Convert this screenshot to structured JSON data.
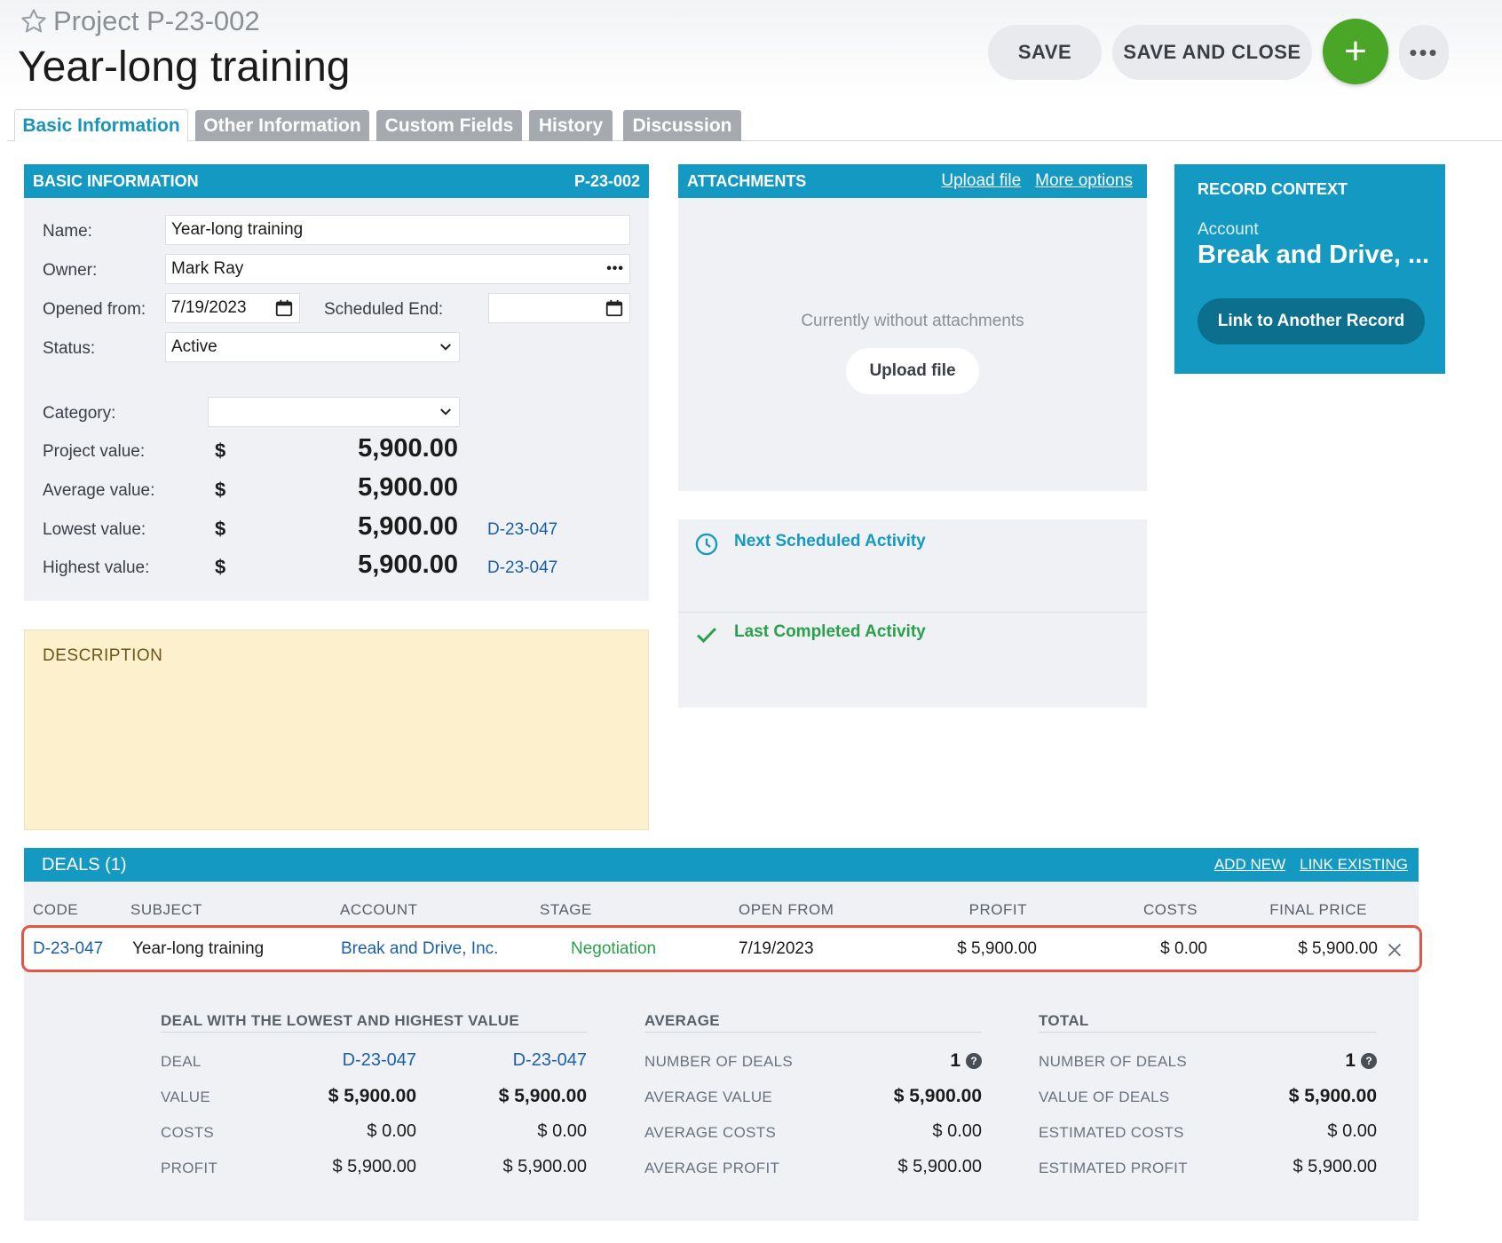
{
  "header": {
    "kicker": "Project P-23-002",
    "title": "Year-long training",
    "save_label": "SAVE",
    "save_close_label": "SAVE AND CLOSE",
    "plus_label": "+",
    "more_label": "•••"
  },
  "tabs": [
    {
      "label": "Basic Information",
      "active": true
    },
    {
      "label": "Other Information"
    },
    {
      "label": "Custom Fields"
    },
    {
      "label": "History"
    },
    {
      "label": "Discussion"
    }
  ],
  "basic": {
    "heading": "BASIC INFORMATION",
    "code": "P-23-002",
    "name_label": "Name:",
    "name_value": "Year-long training",
    "owner_label": "Owner:",
    "owner_value": "Mark Ray",
    "owner_more": "•••",
    "opened_label": "Opened from:",
    "opened_value": "7/19/2023",
    "sched_end_label": "Scheduled End:",
    "sched_end_value": "",
    "status_label": "Status:",
    "status_value": "Active",
    "category_label": "Category:",
    "category_value": "",
    "currency": "$",
    "project_value_label": "Project value:",
    "project_value": "5,900.00",
    "average_value_label": "Average value:",
    "average_value": "5,900.00",
    "lowest_value_label": "Lowest value:",
    "lowest_value": "5,900.00",
    "lowest_link": "D-23-047",
    "highest_value_label": "Highest value:",
    "highest_value": "5,900.00",
    "highest_link": "D-23-047"
  },
  "description": {
    "heading": "DESCRIPTION"
  },
  "attachments": {
    "heading": "ATTACHMENTS",
    "upload_link": "Upload file",
    "more_link": "More options",
    "empty_text": "Currently without attachments",
    "upload_button": "Upload file"
  },
  "activities": {
    "next_label": "Next Scheduled Activity",
    "last_label": "Last Completed Activity"
  },
  "context": {
    "heading": "RECORD CONTEXT",
    "account_label": "Account",
    "account_value": "Break and Drive, ...",
    "link_button": "Link to Another Record"
  },
  "deals": {
    "heading": "DEALS (1)",
    "add_new": "ADD NEW",
    "link_existing": "LINK EXISTING",
    "columns": [
      "CODE",
      "SUBJECT",
      "ACCOUNT",
      "STAGE",
      "OPEN FROM",
      "PROFIT",
      "COSTS",
      "FINAL PRICE"
    ],
    "row": {
      "code": "D-23-047",
      "subject": "Year-long training",
      "account": "Break and Drive, Inc.",
      "stage": "Negotiation",
      "open_from": "7/19/2023",
      "profit": "$ 5,900.00",
      "costs": "$ 0.00",
      "final_price": "$ 5,900.00"
    },
    "summary": {
      "lowhigh": {
        "heading": "DEAL WITH THE LOWEST AND HIGHEST VALUE",
        "deal_label": "DEAL",
        "deal_low": "D-23-047",
        "deal_high": "D-23-047",
        "value_label": "VALUE",
        "value_low": "$ 5,900.00",
        "value_high": "$ 5,900.00",
        "costs_label": "COSTS",
        "costs_low": "$ 0.00",
        "costs_high": "$ 0.00",
        "profit_label": "PROFIT",
        "profit_low": "$ 5,900.00",
        "profit_high": "$ 5,900.00"
      },
      "average": {
        "heading": "AVERAGE",
        "count_label": "NUMBER OF DEALS",
        "count_value": "1",
        "value_label": "AVERAGE VALUE",
        "value_value": "$ 5,900.00",
        "costs_label": "AVERAGE COSTS",
        "costs_value": "$ 0.00",
        "profit_label": "AVERAGE PROFIT",
        "profit_value": "$ 5,900.00"
      },
      "total": {
        "heading": "TOTAL",
        "count_label": "NUMBER OF DEALS",
        "count_value": "1",
        "value_label": "VALUE OF DEALS",
        "value_value": "$ 5,900.00",
        "costs_label": "ESTIMATED COSTS",
        "costs_value": "$ 0.00",
        "profit_label": "ESTIMATED PROFIT",
        "profit_value": "$ 5,900.00"
      },
      "help_glyph": "?"
    }
  },
  "colors": {
    "accent": "#1499c2",
    "plus_button": "#49a626",
    "stage_green": "#2aa04a",
    "highlight_border": "#e25646",
    "description_bg": "#fdf0cc"
  },
  "icons": [
    "star-icon",
    "calendar-icon",
    "chevron-down-icon",
    "clock-icon",
    "check-icon",
    "close-icon",
    "help-icon"
  ]
}
